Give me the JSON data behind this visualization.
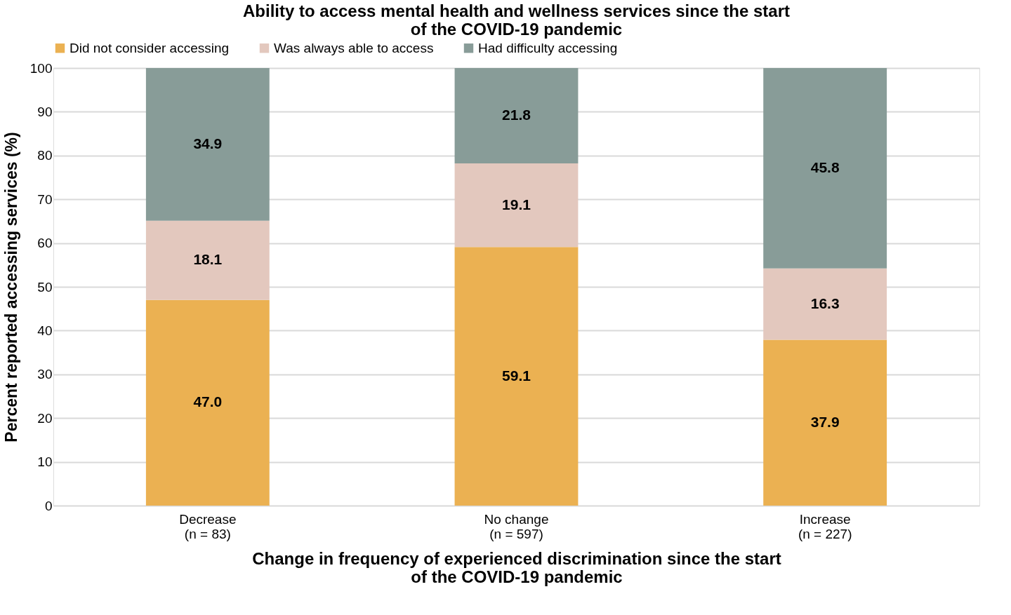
{
  "chart_data": {
    "type": "bar",
    "stacked": true,
    "title": "Ability to access mental health and wellness services since the start\nof the COVID-19 pandemic",
    "xlabel": "Change in frequency of experienced  discrimination since the start\nof the COVID-19 pandemic",
    "ylabel": "Percent reported accessing services (%)",
    "categories": [
      "Decrease\n(n = 83)",
      "No change\n(n = 597)",
      "Increase\n(n = 227)"
    ],
    "series": [
      {
        "name": "Did not consider accessing",
        "color": "#ebb152",
        "values": [
          47.0,
          59.1,
          37.9
        ],
        "value_labels": [
          "47.0",
          "59.1",
          "37.9"
        ]
      },
      {
        "name": "Was always able to access",
        "color": "#e3c8be",
        "values": [
          18.1,
          19.1,
          16.3
        ],
        "value_labels": [
          "18.1",
          "19.1",
          "16.3"
        ]
      },
      {
        "name": "Had difficulty accessing",
        "color": "#889c98",
        "values": [
          34.9,
          21.8,
          45.8
        ],
        "value_labels": [
          "34.9",
          "21.8",
          "45.8"
        ]
      }
    ],
    "ylim": [
      0,
      100
    ],
    "yticks": [
      0,
      10,
      20,
      30,
      40,
      50,
      60,
      70,
      80,
      90,
      100
    ],
    "grid": "y",
    "legend": "top"
  }
}
